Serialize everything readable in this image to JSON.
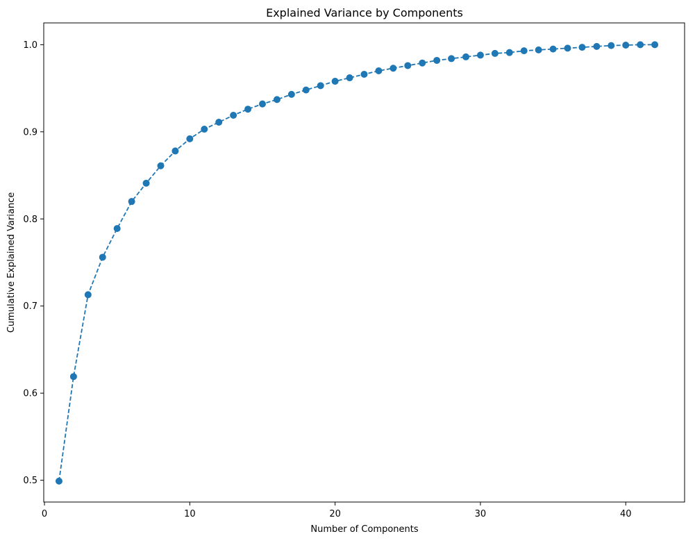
{
  "chart_data": {
    "type": "line",
    "title": "Explained Variance by Components",
    "xlabel": "Number of Components",
    "ylabel": "Cumulative Explained Variance",
    "xlim": [
      -0.05,
      44.05
    ],
    "ylim": [
      0.475,
      1.025
    ],
    "x_ticks": [
      0,
      10,
      20,
      30,
      40
    ],
    "y_ticks": [
      0.5,
      0.6,
      0.7,
      0.8,
      0.9,
      1.0
    ],
    "x_tick_labels": [
      "0",
      "10",
      "20",
      "30",
      "40"
    ],
    "y_tick_labels": [
      "0.5",
      "0.6",
      "0.7",
      "0.8",
      "0.9",
      "1.0"
    ],
    "grid": false,
    "line_style": "dashed",
    "marker": "circle",
    "color": "#1f77b4",
    "x": [
      1,
      2,
      3,
      4,
      5,
      6,
      7,
      8,
      9,
      10,
      11,
      12,
      13,
      14,
      15,
      16,
      17,
      18,
      19,
      20,
      21,
      22,
      23,
      24,
      25,
      26,
      27,
      28,
      29,
      30,
      31,
      32,
      33,
      34,
      35,
      36,
      37,
      38,
      39,
      40,
      41,
      42
    ],
    "y": [
      0.499,
      0.619,
      0.713,
      0.756,
      0.789,
      0.82,
      0.841,
      0.861,
      0.878,
      0.892,
      0.903,
      0.911,
      0.919,
      0.926,
      0.932,
      0.937,
      0.943,
      0.948,
      0.953,
      0.958,
      0.962,
      0.966,
      0.97,
      0.973,
      0.976,
      0.979,
      0.982,
      0.984,
      0.986,
      0.988,
      0.99,
      0.991,
      0.993,
      0.994,
      0.995,
      0.996,
      0.997,
      0.998,
      0.999,
      0.9995,
      1.0,
      1.0
    ]
  }
}
